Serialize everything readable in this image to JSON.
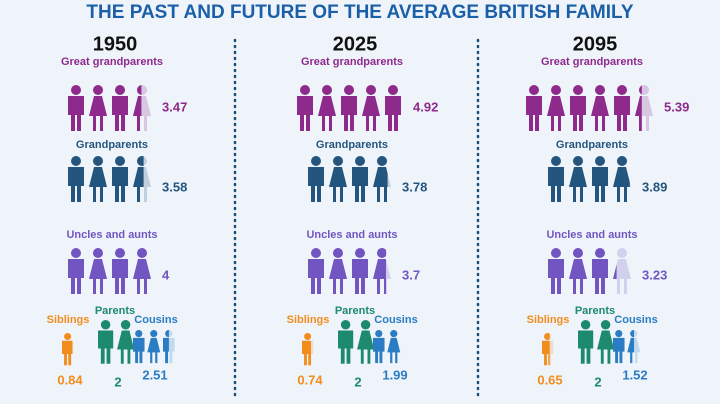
{
  "title": "THE PAST AND FUTURE OF THE AVERAGE BRITISH FAMILY",
  "columns": [
    {
      "year": "1950",
      "groups": [
        {
          "label": "Great grandparents",
          "value": 3.47
        },
        {
          "label": "Grandparents",
          "value": 3.58
        },
        {
          "label": "Uncles and aunts",
          "value": 4
        },
        {
          "label": "Siblings",
          "value": 0.84
        },
        {
          "label": "Parents",
          "value": 2
        },
        {
          "label": "Cousins",
          "value": 2.51
        }
      ]
    },
    {
      "year": "2025",
      "groups": [
        {
          "label": "Great grandparents",
          "value": 4.92
        },
        {
          "label": "Grandparents",
          "value": 3.78
        },
        {
          "label": "Uncles and aunts",
          "value": 3.7
        },
        {
          "label": "Siblings",
          "value": 0.74
        },
        {
          "label": "Parents",
          "value": 2
        },
        {
          "label": "Cousins",
          "value": 1.99
        }
      ]
    },
    {
      "year": "2095",
      "groups": [
        {
          "label": "Great grandparents",
          "value": 5.39
        },
        {
          "label": "Grandparents",
          "value": 3.89
        },
        {
          "label": "Uncles and aunts",
          "value": 3.23
        },
        {
          "label": "Siblings",
          "value": 0.65
        },
        {
          "label": "Parents",
          "value": 2
        },
        {
          "label": "Cousins",
          "value": 1.52
        }
      ]
    }
  ]
}
